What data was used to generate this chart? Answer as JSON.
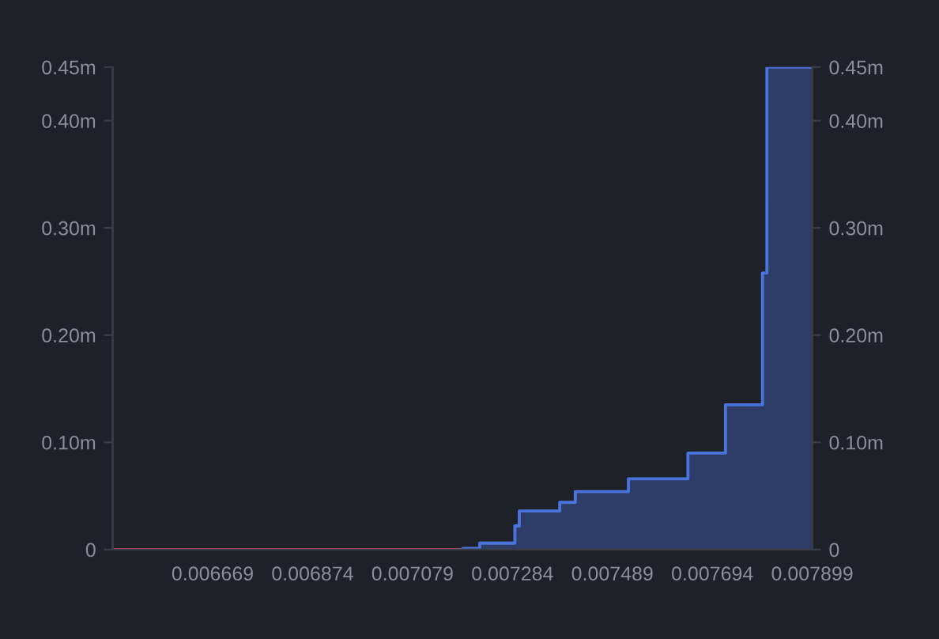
{
  "chart_data": {
    "type": "step",
    "xlim": [
      0.006464,
      0.007899
    ],
    "xticks": [
      0.006669,
      0.006874,
      0.007079,
      0.007284,
      0.007489,
      0.007694,
      0.007899
    ],
    "ylim": [
      0,
      0.45
    ],
    "yticks": [
      0,
      {
        "value": 0.1,
        "label": "0.10m"
      },
      {
        "value": 0.2,
        "label": "0.20m"
      },
      {
        "value": 0.3,
        "label": "0.30m"
      },
      {
        "value": 0.4,
        "label": "0.40m"
      },
      {
        "value": 0.45,
        "label": "0.45m"
      }
    ],
    "y2lim": [
      0,
      0.45
    ],
    "y2ticks": [
      0,
      {
        "value": 0.1,
        "label": "0.10m"
      },
      {
        "value": 0.2,
        "label": "0.20m"
      },
      {
        "value": 0.3,
        "label": "0.30m"
      },
      {
        "value": 0.4,
        "label": "0.40m"
      },
      {
        "value": 0.45,
        "label": "0.45m"
      }
    ],
    "grid": false,
    "legend": false,
    "series": [
      {
        "color": "#e0505c",
        "x": [
          0.006464,
          0.007182
        ],
        "values": [
          0,
          0
        ]
      },
      {
        "color": "#4a74dc",
        "type": "area",
        "x": [
          0.007182,
          0.007217,
          0.007289,
          0.007298,
          0.007381,
          0.007413,
          0.007522,
          0.007644,
          0.007721,
          0.007797,
          0.007806,
          0.007899
        ],
        "values": [
          0.001,
          0.006,
          0.022,
          0.036,
          0.044,
          0.054,
          0.066,
          0.09,
          0.135,
          0.258,
          0.45,
          0.45
        ]
      }
    ]
  }
}
